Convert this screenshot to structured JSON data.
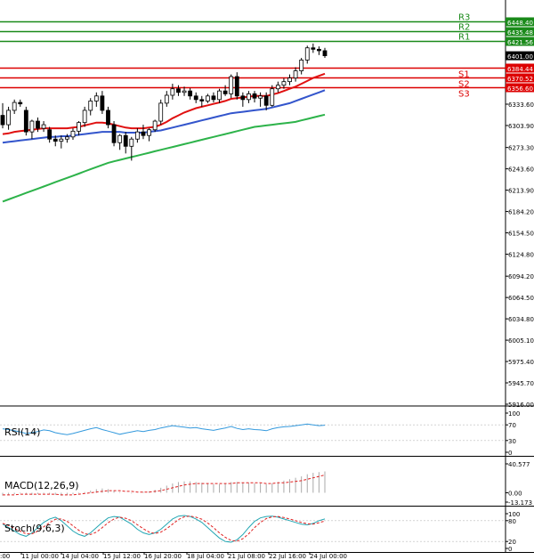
{
  "chart_data": {
    "type": "candlestick",
    "symbol_last_price": "6401.00",
    "price_axis_ticks": [
      "6333.60",
      "6303.90",
      "6273.30",
      "6243.60",
      "6213.90",
      "6184.20",
      "6154.50",
      "6124.80",
      "6094.20",
      "6064.50",
      "6034.80",
      "6005.10",
      "5975.40",
      "5945.70",
      "5916.00"
    ],
    "pivot_levels": [
      {
        "name": "R3",
        "value": 6448.4,
        "label": "6448.40",
        "color": "#1a8a1a"
      },
      {
        "name": "R2",
        "value": 6435.48,
        "label": "6435.48",
        "color": "#1a8a1a"
      },
      {
        "name": "R1",
        "value": 6421.56,
        "label": "6421.56",
        "color": "#1a8a1a"
      },
      {
        "name": "S1",
        "value": 6384.44,
        "label": "6384.44",
        "color": "#dd0000"
      },
      {
        "name": "S2",
        "value": 6370.52,
        "label": "6370.52",
        "color": "#dd0000"
      },
      {
        "name": "S3",
        "value": 6356.6,
        "label": "6356.60",
        "color": "#dd0000"
      }
    ],
    "time_labels": [
      "11 Jul 00:00",
      "14 Jul 04:00",
      "15 Jul 12:00",
      "16 Jul 20:00",
      "18 Jul 04:00",
      "21 Jul 08:00",
      "22 Jul 16:00",
      "24 Jul 00:00"
    ],
    "time_label_partial": ":00",
    "candles": [
      {
        "o": 6318,
        "h": 6335,
        "l": 6300,
        "c": 6305
      },
      {
        "o": 6305,
        "h": 6330,
        "l": 6298,
        "c": 6325
      },
      {
        "o": 6325,
        "h": 6340,
        "l": 6320,
        "c": 6336
      },
      {
        "o": 6336,
        "h": 6340,
        "l": 6330,
        "c": 6334
      },
      {
        "o": 6325,
        "h": 6330,
        "l": 6290,
        "c": 6295
      },
      {
        "o": 6295,
        "h": 6312,
        "l": 6285,
        "c": 6310
      },
      {
        "o": 6310,
        "h": 6315,
        "l": 6295,
        "c": 6300
      },
      {
        "o": 6300,
        "h": 6310,
        "l": 6295,
        "c": 6305
      },
      {
        "o": 6298,
        "h": 6302,
        "l": 6280,
        "c": 6285
      },
      {
        "o": 6285,
        "h": 6290,
        "l": 6275,
        "c": 6282
      },
      {
        "o": 6282,
        "h": 6290,
        "l": 6272,
        "c": 6285
      },
      {
        "o": 6285,
        "h": 6292,
        "l": 6280,
        "c": 6288
      },
      {
        "o": 6288,
        "h": 6300,
        "l": 6284,
        "c": 6296
      },
      {
        "o": 6296,
        "h": 6310,
        "l": 6290,
        "c": 6308
      },
      {
        "o": 6308,
        "h": 6330,
        "l": 6302,
        "c": 6325
      },
      {
        "o": 6325,
        "h": 6342,
        "l": 6318,
        "c": 6338
      },
      {
        "o": 6338,
        "h": 6350,
        "l": 6330,
        "c": 6345
      },
      {
        "o": 6345,
        "h": 6352,
        "l": 6320,
        "c": 6325
      },
      {
        "o": 6325,
        "h": 6330,
        "l": 6300,
        "c": 6305
      },
      {
        "o": 6305,
        "h": 6310,
        "l": 6275,
        "c": 6280
      },
      {
        "o": 6280,
        "h": 6292,
        "l": 6270,
        "c": 6290
      },
      {
        "o": 6290,
        "h": 6295,
        "l": 6265,
        "c": 6275
      },
      {
        "o": 6275,
        "h": 6288,
        "l": 6255,
        "c": 6285
      },
      {
        "o": 6285,
        "h": 6300,
        "l": 6280,
        "c": 6295
      },
      {
        "o": 6295,
        "h": 6305,
        "l": 6285,
        "c": 6290
      },
      {
        "o": 6290,
        "h": 6300,
        "l": 6282,
        "c": 6298
      },
      {
        "o": 6298,
        "h": 6312,
        "l": 6295,
        "c": 6310
      },
      {
        "o": 6310,
        "h": 6340,
        "l": 6305,
        "c": 6335
      },
      {
        "o": 6335,
        "h": 6352,
        "l": 6330,
        "c": 6346
      },
      {
        "o": 6346,
        "h": 6362,
        "l": 6340,
        "c": 6355
      },
      {
        "o": 6355,
        "h": 6360,
        "l": 6345,
        "c": 6350
      },
      {
        "o": 6350,
        "h": 6358,
        "l": 6345,
        "c": 6352
      },
      {
        "o": 6352,
        "h": 6356,
        "l": 6340,
        "c": 6345
      },
      {
        "o": 6345,
        "h": 6350,
        "l": 6335,
        "c": 6340
      },
      {
        "o": 6340,
        "h": 6345,
        "l": 6330,
        "c": 6338
      },
      {
        "o": 6338,
        "h": 6348,
        "l": 6335,
        "c": 6345
      },
      {
        "o": 6345,
        "h": 6350,
        "l": 6336,
        "c": 6340
      },
      {
        "o": 6340,
        "h": 6355,
        "l": 6335,
        "c": 6352
      },
      {
        "o": 6352,
        "h": 6360,
        "l": 6345,
        "c": 6348
      },
      {
        "o": 6348,
        "h": 6375,
        "l": 6342,
        "c": 6372
      },
      {
        "o": 6372,
        "h": 6378,
        "l": 6340,
        "c": 6345
      },
      {
        "o": 6345,
        "h": 6350,
        "l": 6330,
        "c": 6340
      },
      {
        "o": 6340,
        "h": 6352,
        "l": 6335,
        "c": 6348
      },
      {
        "o": 6348,
        "h": 6352,
        "l": 6336,
        "c": 6342
      },
      {
        "o": 6342,
        "h": 6350,
        "l": 6330,
        "c": 6345
      },
      {
        "o": 6345,
        "h": 6350,
        "l": 6325,
        "c": 6332
      },
      {
        "o": 6332,
        "h": 6360,
        "l": 6330,
        "c": 6355
      },
      {
        "o": 6355,
        "h": 6365,
        "l": 6350,
        "c": 6360
      },
      {
        "o": 6360,
        "h": 6370,
        "l": 6355,
        "c": 6365
      },
      {
        "o": 6365,
        "h": 6375,
        "l": 6360,
        "c": 6370
      },
      {
        "o": 6370,
        "h": 6385,
        "l": 6365,
        "c": 6380
      },
      {
        "o": 6380,
        "h": 6398,
        "l": 6375,
        "c": 6395
      },
      {
        "o": 6395,
        "h": 6415,
        "l": 6390,
        "c": 6412
      },
      {
        "o": 6412,
        "h": 6418,
        "l": 6405,
        "c": 6410
      },
      {
        "o": 6410,
        "h": 6414,
        "l": 6402,
        "c": 6408
      },
      {
        "o": 6408,
        "h": 6412,
        "l": 6398,
        "c": 6401
      }
    ],
    "ma_red": [
      6292,
      6293,
      6295,
      6296,
      6297,
      6298,
      6299,
      6300,
      6300,
      6300,
      6300,
      6300,
      6301,
      6302,
      6304,
      6306,
      6308,
      6308,
      6307,
      6305,
      6303,
      6301,
      6300,
      6300,
      6300,
      6301,
      6302,
      6305,
      6309,
      6314,
      6318,
      6322,
      6325,
      6328,
      6330,
      6332,
      6334,
      6336,
      6338,
      6341,
      6342,
      6343,
      6344,
      6345,
      6345,
      6345,
      6347,
      6349,
      6352,
      6355,
      6358,
      6362,
      6366,
      6370,
      6373,
      6376
    ],
    "ma_blue": [
      6280,
      6281,
      6282,
      6283,
      6284,
      6285,
      6286,
      6287,
      6288,
      6288,
      6289,
      6289,
      6290,
      6291,
      6292,
      6293,
      6294,
      6295,
      6295,
      6295,
      6295,
      6294,
      6294,
      6294,
      6294,
      6295,
      6296,
      6297,
      6299,
      6301,
      6303,
      6305,
      6307,
      6309,
      6311,
      6313,
      6315,
      6317,
      6319,
      6321,
      6322,
      6323,
      6324,
      6325,
      6326,
      6327,
      6329,
      6331,
      6333,
      6335,
      6338,
      6341,
      6344,
      6347,
      6350,
      6353
    ],
    "ma_green": [
      6198,
      6201,
      6204,
      6207,
      6210,
      6213,
      6216,
      6219,
      6222,
      6225,
      6228,
      6231,
      6234,
      6237,
      6240,
      6243,
      6246,
      6249,
      6252,
      6254,
      6256,
      6258,
      6260,
      6262,
      6264,
      6266,
      6268,
      6270,
      6272,
      6274,
      6276,
      6278,
      6280,
      6282,
      6284,
      6286,
      6288,
      6290,
      6292,
      6294,
      6296,
      6298,
      6300,
      6302,
      6303,
      6304,
      6305,
      6306,
      6307,
      6308,
      6309,
      6311,
      6313,
      6315,
      6317,
      6319
    ],
    "indicators": [
      {
        "name": "RSI(14)",
        "axis_ticks": [
          "100",
          "70",
          "30",
          "0"
        ],
        "range": [
          0,
          100
        ],
        "values": [
          60,
          58,
          55,
          52,
          48,
          50,
          53,
          57,
          55,
          50,
          47,
          45,
          48,
          52,
          56,
          60,
          63,
          58,
          54,
          50,
          46,
          49,
          52,
          55,
          53,
          56,
          58,
          62,
          65,
          68,
          66,
          64,
          62,
          63,
          60,
          58,
          56,
          59,
          62,
          66,
          61,
          58,
          60,
          58,
          57,
          55,
          60,
          63,
          65,
          66,
          68,
          70,
          72,
          70,
          68,
          69
        ]
      },
      {
        "name": "MACD(12,26,9)",
        "axis_ticks": [
          "40.577",
          "0.00",
          "-13.173"
        ],
        "range": [
          -13.173,
          40.577
        ],
        "values": [
          -4,
          -3,
          -2,
          -1,
          -2,
          -3,
          -2,
          -1,
          -2,
          -3,
          -4,
          -3,
          -2,
          -1,
          1,
          3,
          5,
          6,
          5,
          3,
          1,
          0,
          -1,
          0,
          1,
          2,
          4,
          7,
          10,
          13,
          15,
          16,
          16,
          15,
          14,
          13,
          12,
          12,
          13,
          15,
          15,
          14,
          14,
          13,
          13,
          12,
          13,
          15,
          17,
          19,
          21,
          23,
          26,
          28,
          29,
          30
        ],
        "signal": [
          -3,
          -3,
          -3,
          -2,
          -2,
          -2,
          -2,
          -2,
          -2,
          -2,
          -3,
          -3,
          -3,
          -2,
          -1,
          0,
          1,
          2,
          3,
          3,
          3,
          2,
          2,
          1,
          1,
          1,
          2,
          3,
          5,
          7,
          9,
          11,
          12,
          13,
          13,
          13,
          13,
          13,
          13,
          13,
          14,
          14,
          14,
          14,
          14,
          13,
          13,
          14,
          14,
          15,
          16,
          17,
          19,
          21,
          23,
          25
        ]
      },
      {
        "name": "Stoch(9,6,3)",
        "axis_ticks": [
          "100",
          "80",
          "20",
          "0"
        ],
        "range": [
          0,
          100
        ],
        "main": [
          70,
          60,
          50,
          40,
          35,
          45,
          60,
          75,
          85,
          90,
          80,
          65,
          50,
          40,
          35,
          45,
          60,
          75,
          88,
          92,
          90,
          80,
          70,
          55,
          45,
          40,
          45,
          55,
          70,
          85,
          93,
          95,
          92,
          85,
          75,
          60,
          45,
          30,
          20,
          18,
          25,
          40,
          60,
          78,
          88,
          92,
          93,
          90,
          85,
          80,
          75,
          70,
          68,
          72,
          80,
          85
        ],
        "signal": [
          72,
          66,
          58,
          50,
          42,
          42,
          50,
          62,
          74,
          84,
          85,
          78,
          65,
          52,
          42,
          40,
          47,
          60,
          74,
          85,
          90,
          87,
          80,
          68,
          57,
          47,
          43,
          47,
          57,
          70,
          83,
          91,
          93,
          90,
          84,
          73,
          60,
          45,
          32,
          23,
          21,
          28,
          42,
          60,
          75,
          86,
          91,
          92,
          89,
          85,
          80,
          75,
          71,
          70,
          74,
          79
        ]
      }
    ]
  }
}
